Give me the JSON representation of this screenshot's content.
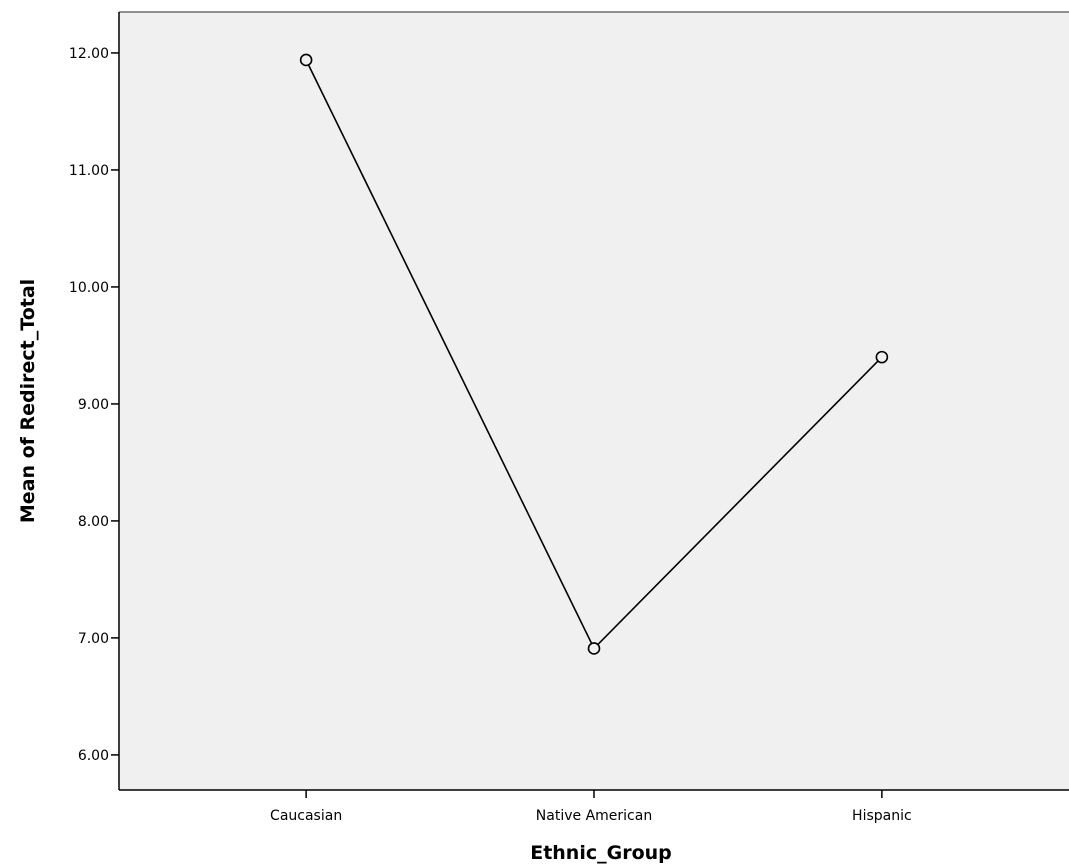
{
  "chart_data": {
    "type": "line",
    "title": "",
    "xlabel": "Ethnic_Group",
    "ylabel": "Mean of Redirect_Total",
    "categories": [
      "Caucasian",
      "Native American",
      "Hispanic"
    ],
    "series": [
      {
        "values": [
          11.94,
          6.91,
          9.4
        ]
      }
    ],
    "ylim": [
      5.7,
      12.35
    ],
    "yticks": [
      6,
      7,
      8,
      9,
      10,
      11,
      12
    ],
    "ytick_labels": [
      "6.00",
      "7.00",
      "8.00",
      "9.00",
      "10.00",
      "11.00",
      "12.00"
    ],
    "grid": false,
    "legend": "none",
    "marker": "open-circle",
    "colors": {
      "plot_background": "#f0f0f0",
      "line": "#000000",
      "marker_fill": "#f0f0f0",
      "axis": "#000000",
      "frame": "#6e6e6e"
    }
  }
}
